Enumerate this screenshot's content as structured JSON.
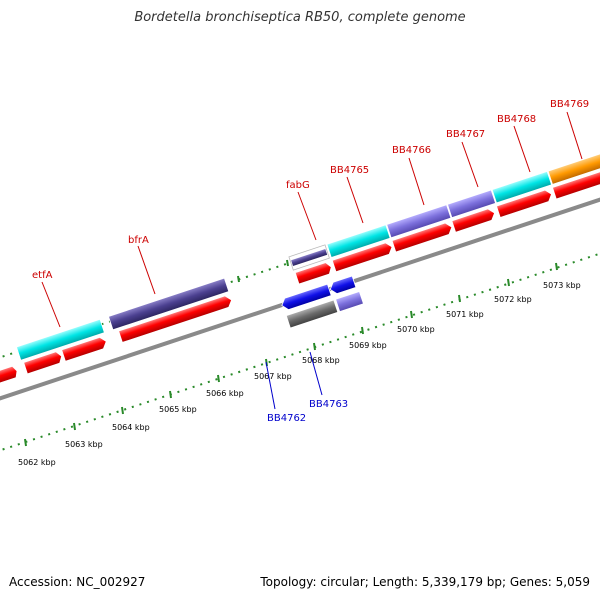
{
  "title": "Bordetella bronchiseptica RB50, complete genome",
  "footer": {
    "accession": "Accession: NC_002927",
    "summary": "Topology: circular; Length: 5,339,179 bp; Genes: 5,059"
  },
  "scale_labels": [
    "5062 kbp",
    "5063 kbp",
    "5064 kbp",
    "5065 kbp",
    "5066 kbp",
    "5067 kbp",
    "5068 kbp",
    "5069 kbp",
    "5070 kbp",
    "5071 kbp",
    "5072 kbp",
    "5073 kbp"
  ],
  "gene_labels_top": [
    "etfA",
    "bfrA",
    "fabG",
    "BB4765",
    "BB4766",
    "BB4767",
    "BB4768",
    "BB4769"
  ],
  "gene_labels_bottom": [
    "BB4762",
    "BB4763"
  ],
  "colors": {
    "cds": "#ff0000",
    "feature_cyan": "#00e5e5",
    "feature_slate": "#5a4e9c",
    "feature_lavender": "#8a7fe0",
    "feature_blue": "#1a1aee",
    "feature_gray": "#707070",
    "feature_orange": "#ff9900",
    "ticks": "#2a8a2a",
    "backbone": "#909090"
  }
}
